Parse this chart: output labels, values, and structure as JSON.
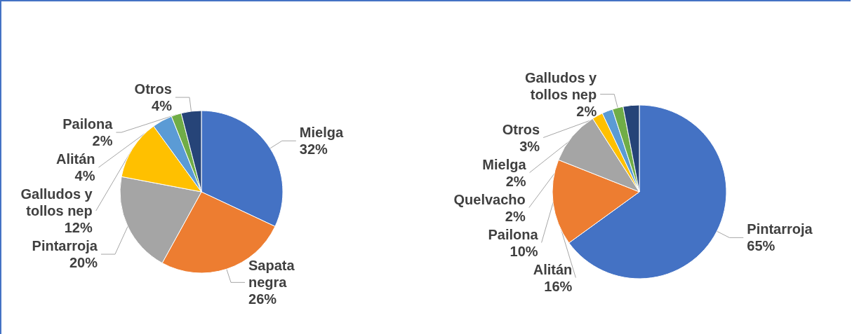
{
  "chart_data": [
    {
      "type": "pie",
      "categories": [
        "Mielga",
        "Sapata negra",
        "Pintarroja",
        "Galludos y tollos nep",
        "Alitán",
        "Pailona",
        "Otros"
      ],
      "values": [
        32,
        26,
        20,
        12,
        4,
        2,
        4
      ],
      "value_labels": [
        "32%",
        "26%",
        "20%",
        "12%",
        "4%",
        "2%",
        "4%"
      ],
      "colors": [
        "#4472c4",
        "#ed7d31",
        "#a5a5a5",
        "#ffc000",
        "#5b9bd5",
        "#70ad47",
        "#264478"
      ]
    },
    {
      "type": "pie",
      "categories": [
        "Pintarroja",
        "Alitán",
        "Pailona",
        "Quelvacho",
        "Mielga",
        "Galludos y tollos nep",
        "Otros"
      ],
      "values": [
        65,
        16,
        10,
        2,
        2,
        2,
        3
      ],
      "value_labels": [
        "65%",
        "16%",
        "10%",
        "2%",
        "2%",
        "2%",
        "3%"
      ],
      "colors": [
        "#4472c4",
        "#ed7d31",
        "#a5a5a5",
        "#ffc000",
        "#5b9bd5",
        "#70ad47",
        "#264478"
      ]
    }
  ]
}
